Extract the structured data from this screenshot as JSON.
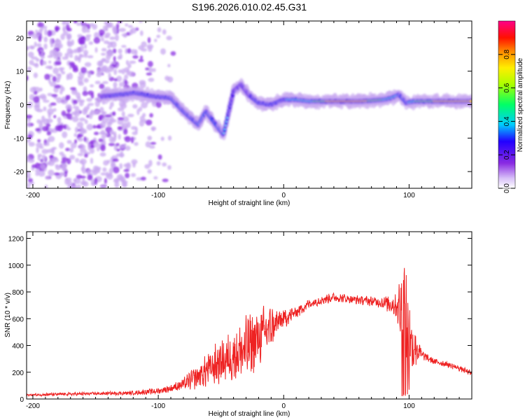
{
  "figure_title": "S196.2026.010.02.45.G31",
  "colors": {
    "snr_line": "#ee2222",
    "axis": "#000000",
    "spectrum_core": "#ee1111",
    "spectrum_mid": "#22dd66",
    "spectrum_edge": "#3300ee",
    "spectrum_faint": "#c8a8f0"
  },
  "chart_data": [
    {
      "type": "heatmap",
      "name": "spectrogram",
      "xlabel": "Height of straight line (km)",
      "ylabel": "Frequency (Hz)",
      "xlim": [
        -205,
        150
      ],
      "ylim": [
        -25,
        25
      ],
      "x_ticks": [
        -200,
        -100,
        0,
        100
      ],
      "x_tick_labels": [
        "-200",
        "-100",
        "0",
        "100"
      ],
      "y_ticks": [
        -20,
        -10,
        0,
        10,
        20
      ],
      "y_tick_labels": [
        "-20",
        "-10",
        "0",
        "10",
        "20"
      ],
      "colorbar": {
        "label": "Normalized spectral amplitude",
        "range": [
          0,
          1
        ],
        "ticks": [
          0.0,
          0.2,
          0.4,
          0.6,
          0.8
        ],
        "tick_labels": [
          "0.0",
          "0.2",
          "0.4",
          "0.6",
          "0.8"
        ]
      },
      "ridge": [
        {
          "x": -145,
          "f": 2.5,
          "amp": 0.3
        },
        {
          "x": -130,
          "f": 3,
          "amp": 0.35
        },
        {
          "x": -118,
          "f": 3.5,
          "amp": 0.35
        },
        {
          "x": -105,
          "f": 2.5,
          "amp": 0.35
        },
        {
          "x": -90,
          "f": 2,
          "amp": 0.35
        },
        {
          "x": -85,
          "f": 0,
          "amp": 0.35
        },
        {
          "x": -80,
          "f": -2,
          "amp": 0.35
        },
        {
          "x": -74,
          "f": -4,
          "amp": 0.35
        },
        {
          "x": -68,
          "f": -6,
          "amp": 0.35
        },
        {
          "x": -62,
          "f": -2,
          "amp": 0.4
        },
        {
          "x": -56,
          "f": -5,
          "amp": 0.4
        },
        {
          "x": -48,
          "f": -9,
          "amp": 0.35
        },
        {
          "x": -40,
          "f": 4,
          "amp": 0.3
        },
        {
          "x": -34,
          "f": 6,
          "amp": 0.3
        },
        {
          "x": -28,
          "f": 3,
          "amp": 0.3
        },
        {
          "x": -20,
          "f": 0.5,
          "amp": 0.35
        },
        {
          "x": -10,
          "f": 0,
          "amp": 0.35
        },
        {
          "x": 0,
          "f": 1.5,
          "amp": 0.4
        },
        {
          "x": 10,
          "f": 1.5,
          "amp": 0.45
        },
        {
          "x": 20,
          "f": 1,
          "amp": 0.5
        },
        {
          "x": 30,
          "f": 1,
          "amp": 0.65
        },
        {
          "x": 40,
          "f": 1,
          "amp": 0.9
        },
        {
          "x": 50,
          "f": 1,
          "amp": 0.95
        },
        {
          "x": 60,
          "f": 1,
          "amp": 0.9
        },
        {
          "x": 70,
          "f": 1.2,
          "amp": 0.7
        },
        {
          "x": 80,
          "f": 1.5,
          "amp": 0.55
        },
        {
          "x": 86,
          "f": 2,
          "amp": 0.5
        },
        {
          "x": 92,
          "f": 3,
          "amp": 0.4
        },
        {
          "x": 98,
          "f": 0.5,
          "amp": 0.35
        },
        {
          "x": 104,
          "f": 1,
          "amp": 0.55
        },
        {
          "x": 112,
          "f": 1,
          "amp": 0.65
        },
        {
          "x": 120,
          "f": 1,
          "amp": 0.75
        },
        {
          "x": 130,
          "f": 1,
          "amp": 0.75
        },
        {
          "x": 140,
          "f": 1,
          "amp": 0.75
        },
        {
          "x": 150,
          "f": 1,
          "amp": 0.75
        }
      ],
      "noise_region": {
        "x_start": -205,
        "x_end": -85,
        "f_range": [
          -25,
          25
        ]
      }
    },
    {
      "type": "line",
      "name": "snr",
      "xlabel": "Height of straight line (km)",
      "ylabel": "SNR (10 * v/v)",
      "xlim": [
        -205,
        150
      ],
      "ylim": [
        0,
        1250
      ],
      "x_ticks": [
        -200,
        -100,
        0,
        100
      ],
      "x_tick_labels": [
        "-200",
        "-100",
        "0",
        "100"
      ],
      "y_ticks": [
        0,
        200,
        400,
        600,
        800,
        1000,
        1200
      ],
      "y_tick_labels": [
        "0",
        "200",
        "400",
        "600",
        "800",
        "1000",
        "1200"
      ],
      "envelope": {
        "x": [
          -205,
          -180,
          -150,
          -120,
          -100,
          -90,
          -80,
          -70,
          -60,
          -50,
          -40,
          -30,
          -20,
          -10,
          0,
          10,
          20,
          30,
          40,
          50,
          60,
          70,
          80,
          90,
          95,
          100,
          105,
          110,
          120,
          130,
          140,
          150
        ],
        "y": [
          30,
          35,
          40,
          45,
          60,
          80,
          110,
          160,
          220,
          280,
          330,
          370,
          460,
          540,
          600,
          650,
          710,
          740,
          760,
          750,
          740,
          730,
          720,
          700,
          650,
          420,
          400,
          330,
          280,
          260,
          230,
          190
        ],
        "noise": [
          8,
          10,
          10,
          12,
          20,
          25,
          40,
          70,
          110,
          140,
          170,
          200,
          190,
          130,
          60,
          40,
          30,
          30,
          30,
          30,
          30,
          30,
          40,
          80,
          300,
          350,
          150,
          30,
          20,
          20,
          18,
          15
        ]
      },
      "max_value": 1250
    }
  ]
}
